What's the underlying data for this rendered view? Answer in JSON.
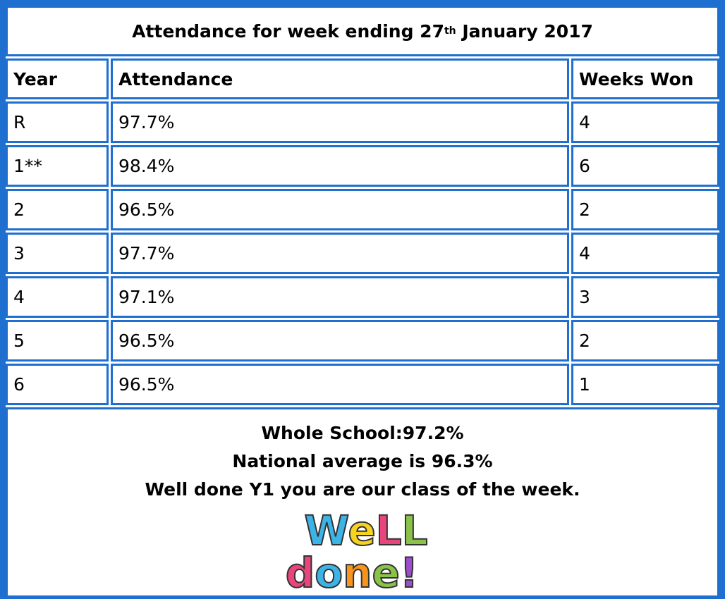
{
  "table": {
    "title": {
      "text": "Attendance for week ending 27",
      "sup": "th",
      "after": "January 2017"
    },
    "header": [
      "Year",
      "Attendance",
      "Weeks Won"
    ],
    "rows": [
      [
        "R",
        "97.7%",
        "4"
      ],
      [
        "1**",
        "98.4%",
        "6"
      ],
      [
        "2",
        "96.5%",
        "2"
      ],
      [
        "3",
        "97.7%",
        "4"
      ],
      [
        "4",
        "97.1%",
        "3"
      ],
      [
        "5",
        "96.5%",
        "2"
      ],
      [
        "6",
        "96.5%",
        "1"
      ]
    ],
    "footer": [
      "Whole School:97.2%",
      "National average is 96.3%",
      "Well done Y1 you are our class of the week."
    ],
    "image_text": [
      "WeLL",
      "done!"
    ]
  }
}
